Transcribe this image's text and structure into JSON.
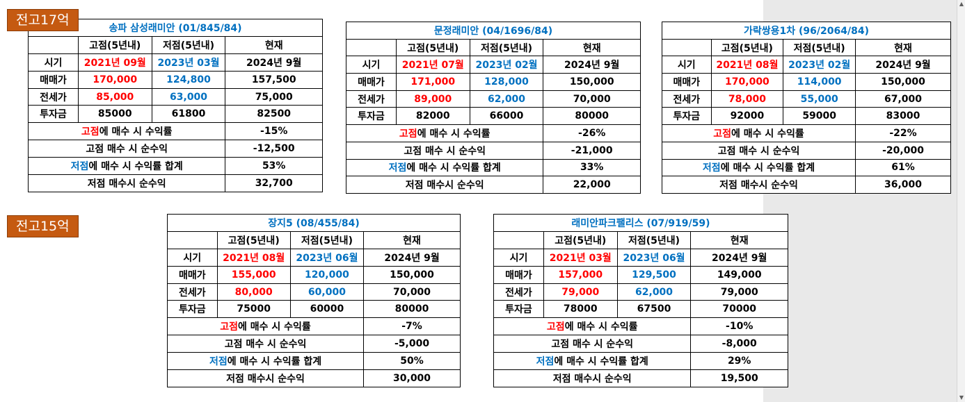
{
  "groups": [
    {
      "label": "전고17억"
    },
    {
      "label": "전고15억"
    }
  ],
  "common": {
    "col_high": "고점(5년내)",
    "col_low": "저점(5년내)",
    "col_now": "현재",
    "row_period": "시기",
    "row_price": "매매가",
    "row_jeonse": "전세가",
    "row_invest": "투자금",
    "row_high_rate_prefix": "고점",
    "row_high_rate_suffix": "에 매수 시 수익률",
    "row_high_profit": "고점 매수 시 순수익",
    "row_low_rate_prefix": "저점",
    "row_low_rate_suffix": "에 매수 시 수익률 합계",
    "row_low_profit": "저점 매수시 순수익"
  },
  "cards": [
    {
      "title": "송파 삼성래미안 (01/845/84)",
      "period": [
        "2021년 09월",
        "2023년 03월",
        "2024년 9월"
      ],
      "price": [
        "170,000",
        "124,800",
        "157,500"
      ],
      "jeonse": [
        "85,000",
        "63,000",
        "75,000"
      ],
      "invest": [
        "85000",
        "61800",
        "82500"
      ],
      "high_rate": "-15%",
      "high_profit": "-12,500",
      "low_rate": "53%",
      "low_profit": "32,700"
    },
    {
      "title": "문정래미안 (04/1696/84)",
      "period": [
        "2021년 07월",
        "2023년 02월",
        "2024년 9월"
      ],
      "price": [
        "171,000",
        "128,000",
        "150,000"
      ],
      "jeonse": [
        "89,000",
        "62,000",
        "70,000"
      ],
      "invest": [
        "82000",
        "66000",
        "80000"
      ],
      "high_rate": "-26%",
      "high_profit": "-21,000",
      "low_rate": "33%",
      "low_profit": "22,000"
    },
    {
      "title": "가락쌍용1차 (96/2064/84)",
      "period": [
        "2021년 08월",
        "2023년 02월",
        "2024년 9월"
      ],
      "price": [
        "170,000",
        "114,000",
        "150,000"
      ],
      "jeonse": [
        "78,000",
        "55,000",
        "67,000"
      ],
      "invest": [
        "92000",
        "59000",
        "83000"
      ],
      "high_rate": "-22%",
      "high_profit": "-20,000",
      "low_rate": "61%",
      "low_profit": "36,000"
    },
    {
      "title": "장지5 (08/455/84)",
      "period": [
        "2021년 08월",
        "2023년 06월",
        "2024년 9월"
      ],
      "price": [
        "155,000",
        "120,000",
        "150,000"
      ],
      "jeonse": [
        "80,000",
        "60,000",
        "70,000"
      ],
      "invest": [
        "75000",
        "60000",
        "80000"
      ],
      "high_rate": "-7%",
      "high_profit": "-5,000",
      "low_rate": "50%",
      "low_profit": "30,000"
    },
    {
      "title": "래미안파크팰리스 (07/919/59)",
      "period": [
        "2021년 03월",
        "2023년 06월",
        "2024년 9월"
      ],
      "price": [
        "157,000",
        "129,500",
        "149,000"
      ],
      "jeonse": [
        "79,000",
        "62,000",
        "79,000"
      ],
      "invest": [
        "78000",
        "67500",
        "70000"
      ],
      "high_rate": "-10%",
      "high_profit": "-8,000",
      "low_rate": "29%",
      "low_profit": "19,500"
    }
  ]
}
